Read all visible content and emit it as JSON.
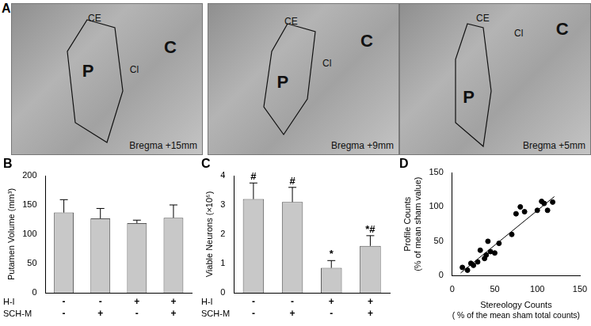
{
  "panel_a": {
    "panel": "A",
    "images": [
      {
        "labels": [
          "CE",
          "P",
          "Cl",
          "C"
        ],
        "caption": "Bregma +15mm"
      },
      {
        "labels": [
          "CE",
          "P",
          "Cl",
          "C"
        ],
        "caption": "Bregma +9mm"
      },
      {
        "labels": [
          "CE",
          "P",
          "Cl",
          "C"
        ],
        "caption": "Bregma +5mm"
      }
    ]
  },
  "chart_data": [
    {
      "panel": "B",
      "type": "bar",
      "ylabel": "Putamen Volume (mm³)",
      "categories": [
        [
          "-",
          "-"
        ],
        [
          "-",
          "+"
        ],
        [
          "+",
          "-"
        ],
        [
          "+",
          "+"
        ]
      ],
      "category_rows": [
        "H-I",
        "SCH-M"
      ],
      "values": [
        137,
        127,
        119,
        128
      ],
      "errors": [
        22,
        17,
        5,
        22
      ],
      "color": "#c8c8c8",
      "ylim": [
        0,
        200
      ],
      "yticks": [
        0,
        50,
        100,
        150,
        200
      ],
      "grid": false
    },
    {
      "panel": "C",
      "type": "bar",
      "ylabel": "Viable Neurons (×10⁶)",
      "categories": [
        [
          "-",
          "-"
        ],
        [
          "-",
          "+"
        ],
        [
          "+",
          "-"
        ],
        [
          "+",
          "+"
        ]
      ],
      "category_rows": [
        "H-I",
        "SCH-M"
      ],
      "values": [
        3.2,
        3.1,
        0.85,
        1.6
      ],
      "errors": [
        0.55,
        0.5,
        0.25,
        0.35
      ],
      "annotations": [
        "#",
        "#",
        "*",
        "*#"
      ],
      "color": "#c8c8c8",
      "ylim": [
        0,
        4
      ],
      "yticks": [
        0,
        1,
        2,
        3,
        4
      ],
      "grid": false
    },
    {
      "panel": "D",
      "type": "scatter",
      "xlabel": [
        "Stereology Counts",
        "( % of the mean sham total counts)"
      ],
      "ylabel": [
        "Profile Counts",
        "(% of mean sham value)"
      ],
      "x": [
        12,
        18,
        22,
        25,
        30,
        33,
        38,
        40,
        42,
        45,
        50,
        55,
        70,
        75,
        80,
        85,
        100,
        105,
        108,
        112,
        118
      ],
      "values": [
        12,
        8,
        18,
        15,
        20,
        37,
        25,
        30,
        50,
        35,
        33,
        47,
        60,
        90,
        100,
        93,
        95,
        108,
        105,
        95,
        107
      ],
      "fit_line": {
        "x": [
          10,
          120
        ],
        "y": [
          4,
          115
        ]
      },
      "color": "#000000",
      "xlim": [
        0,
        150
      ],
      "ylim": [
        0,
        150
      ],
      "xticks": [
        0,
        50,
        100,
        150
      ],
      "yticks": [
        0,
        50,
        100,
        150
      ],
      "grid": false
    }
  ]
}
